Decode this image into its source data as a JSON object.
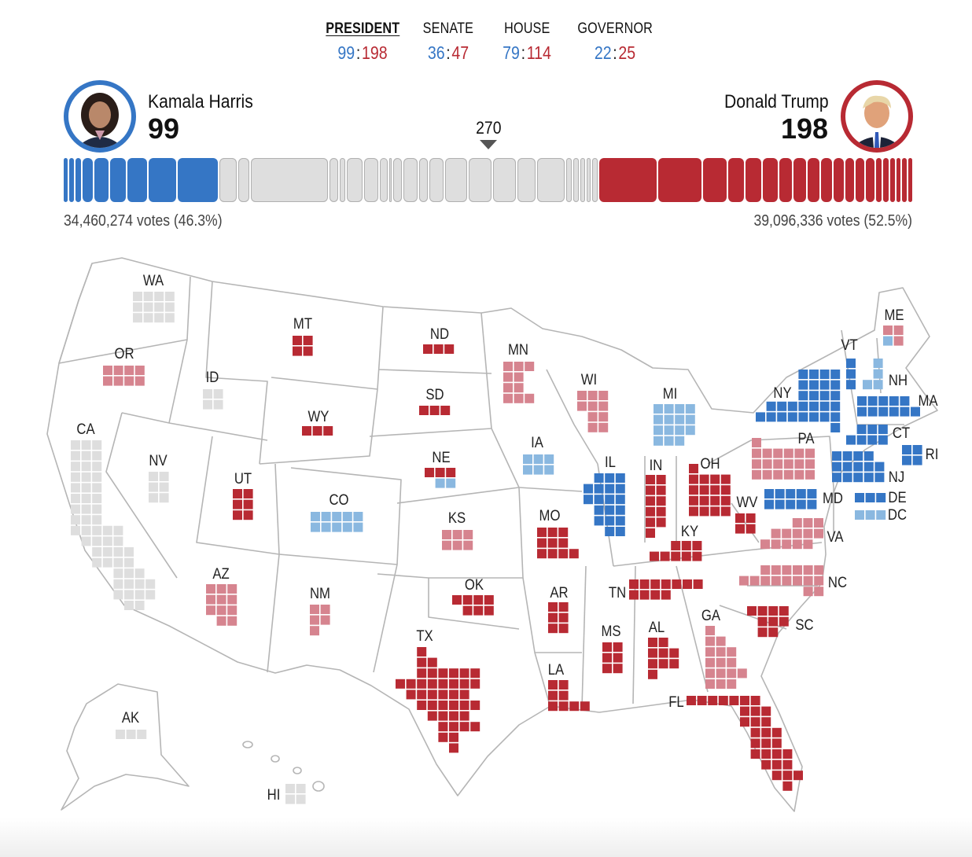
{
  "tabs": [
    {
      "label": "PRESIDENT",
      "dem": "99",
      "rep": "198",
      "active": true
    },
    {
      "label": "SENATE",
      "dem": "36",
      "rep": "47",
      "active": false
    },
    {
      "label": "HOUSE",
      "dem": "79",
      "rep": "114",
      "active": false
    },
    {
      "label": "GOVERNOR",
      "dem": "22",
      "rep": "25",
      "active": false
    }
  ],
  "candidates": {
    "dem": {
      "name": "Kamala Harris",
      "electoral_votes": "99",
      "votes": "34,460,274 votes (46.3%)",
      "color": "#3576c5"
    },
    "rep": {
      "name": "Donald Trump",
      "electoral_votes": "198",
      "votes": "39,096,336 votes (52.5%)",
      "color": "#b82a33"
    }
  },
  "threshold": "270",
  "total_electoral_votes": 538,
  "colors": {
    "D": "#3576c5",
    "lean-D": "#8ab8e0",
    "R": "#b82a33",
    "lean-R": "#d6848f",
    "none": "#dedede"
  },
  "states": [
    {
      "abbr": "WA",
      "ev": 12,
      "status": "none"
    },
    {
      "abbr": "OR",
      "ev": 8,
      "status": "lean-R"
    },
    {
      "abbr": "CA",
      "ev": 54,
      "status": "none"
    },
    {
      "abbr": "NV",
      "ev": 6,
      "status": "none"
    },
    {
      "abbr": "ID",
      "ev": 4,
      "status": "none"
    },
    {
      "abbr": "MT",
      "ev": 4,
      "status": "R"
    },
    {
      "abbr": "WY",
      "ev": 3,
      "status": "R"
    },
    {
      "abbr": "UT",
      "ev": 6,
      "status": "R"
    },
    {
      "abbr": "AZ",
      "ev": 11,
      "status": "lean-R"
    },
    {
      "abbr": "CO",
      "ev": 10,
      "status": "lean-D"
    },
    {
      "abbr": "NM",
      "ev": 5,
      "status": "lean-R"
    },
    {
      "abbr": "ND",
      "ev": 3,
      "status": "R"
    },
    {
      "abbr": "SD",
      "ev": 3,
      "status": "R"
    },
    {
      "abbr": "NE",
      "ev": 5,
      "tiles": [
        "R",
        "R",
        "R",
        "lean-D",
        "lean-D"
      ]
    },
    {
      "abbr": "KS",
      "ev": 6,
      "status": "lean-R"
    },
    {
      "abbr": "OK",
      "ev": 7,
      "status": "R"
    },
    {
      "abbr": "TX",
      "ev": 40,
      "status": "R"
    },
    {
      "abbr": "MN",
      "ev": 10,
      "status": "lean-R"
    },
    {
      "abbr": "IA",
      "ev": 6,
      "status": "lean-D"
    },
    {
      "abbr": "MO",
      "ev": 10,
      "status": "R"
    },
    {
      "abbr": "AR",
      "ev": 6,
      "status": "R"
    },
    {
      "abbr": "LA",
      "ev": 8,
      "status": "R"
    },
    {
      "abbr": "WI",
      "ev": 10,
      "status": "lean-R"
    },
    {
      "abbr": "IL",
      "ev": 19,
      "status": "D"
    },
    {
      "abbr": "MI",
      "ev": 15,
      "status": "lean-D"
    },
    {
      "abbr": "IN",
      "ev": 11,
      "status": "R"
    },
    {
      "abbr": "OH",
      "ev": 17,
      "status": "R"
    },
    {
      "abbr": "KY",
      "ev": 8,
      "status": "R"
    },
    {
      "abbr": "TN",
      "ev": 11,
      "status": "R"
    },
    {
      "abbr": "MS",
      "ev": 6,
      "status": "R"
    },
    {
      "abbr": "AL",
      "ev": 9,
      "status": "R"
    },
    {
      "abbr": "GA",
      "ev": 16,
      "status": "lean-R"
    },
    {
      "abbr": "FL",
      "ev": 30,
      "status": "R"
    },
    {
      "abbr": "SC",
      "ev": 9,
      "status": "R"
    },
    {
      "abbr": "NC",
      "ev": 16,
      "status": "lean-R"
    },
    {
      "abbr": "VA",
      "ev": 13,
      "status": "lean-R"
    },
    {
      "abbr": "WV",
      "ev": 4,
      "status": "R"
    },
    {
      "abbr": "PA",
      "ev": 19,
      "status": "lean-R"
    },
    {
      "abbr": "NY",
      "ev": 28,
      "status": "D"
    },
    {
      "abbr": "VT",
      "ev": 3,
      "status": "D"
    },
    {
      "abbr": "NH",
      "ev": 4,
      "status": "lean-D"
    },
    {
      "abbr": "ME",
      "ev": 4,
      "tiles": [
        "lean-R",
        "lean-R",
        "lean-D",
        "lean-R"
      ]
    },
    {
      "abbr": "MA",
      "ev": 11,
      "status": "D"
    },
    {
      "abbr": "CT",
      "ev": 7,
      "status": "D"
    },
    {
      "abbr": "RI",
      "ev": 4,
      "status": "D"
    },
    {
      "abbr": "NJ",
      "ev": 14,
      "status": "D"
    },
    {
      "abbr": "MD",
      "ev": 10,
      "status": "D"
    },
    {
      "abbr": "DE",
      "ev": 3,
      "status": "D"
    },
    {
      "abbr": "DC",
      "ev": 3,
      "status": "lean-D"
    },
    {
      "abbr": "AK",
      "ev": 3,
      "status": "none"
    },
    {
      "abbr": "HI",
      "ev": 4,
      "status": "none"
    }
  ]
}
